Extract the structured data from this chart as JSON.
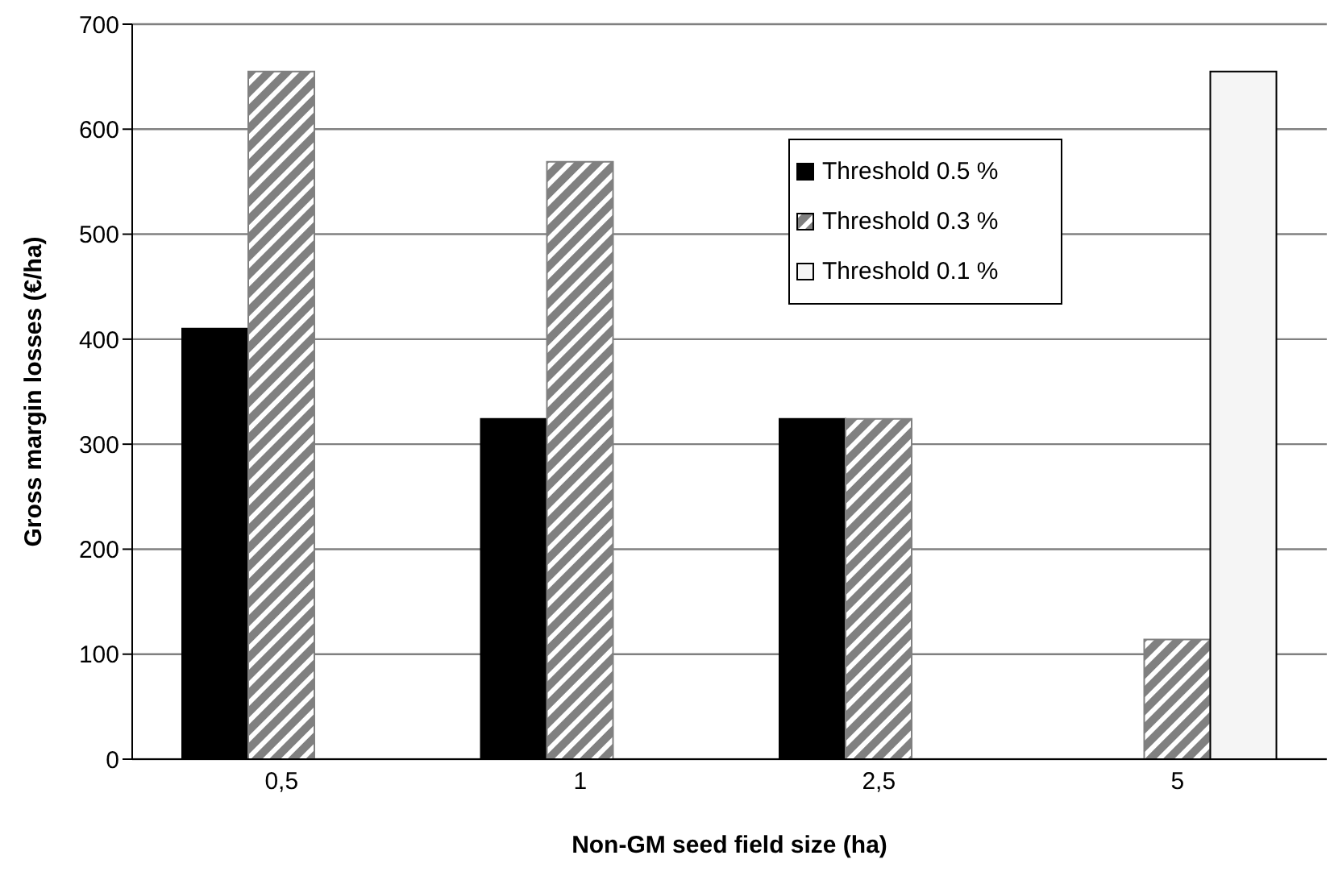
{
  "chart_data": {
    "type": "bar",
    "xlabel": "Non-GM seed field size (ha)",
    "ylabel": "Gross margin losses (€/ha)",
    "categories": [
      "0,5",
      "1",
      "2,5",
      "5"
    ],
    "series": [
      {
        "name": "Threshold 0.5 %",
        "color": "#000000",
        "values": [
          410,
          324,
          324,
          null
        ]
      },
      {
        "name": "Threshold 0.3 %",
        "color": "#808080",
        "values": [
          655,
          569,
          324,
          114
        ]
      },
      {
        "name": "Threshold 0.1 %",
        "color": "#f5f5f5",
        "values": [
          null,
          null,
          null,
          655
        ]
      }
    ],
    "ylim": [
      0,
      700
    ],
    "yticks": [
      0,
      100,
      200,
      300,
      400,
      500,
      600,
      700
    ],
    "grid": "y",
    "legend": "top right"
  }
}
